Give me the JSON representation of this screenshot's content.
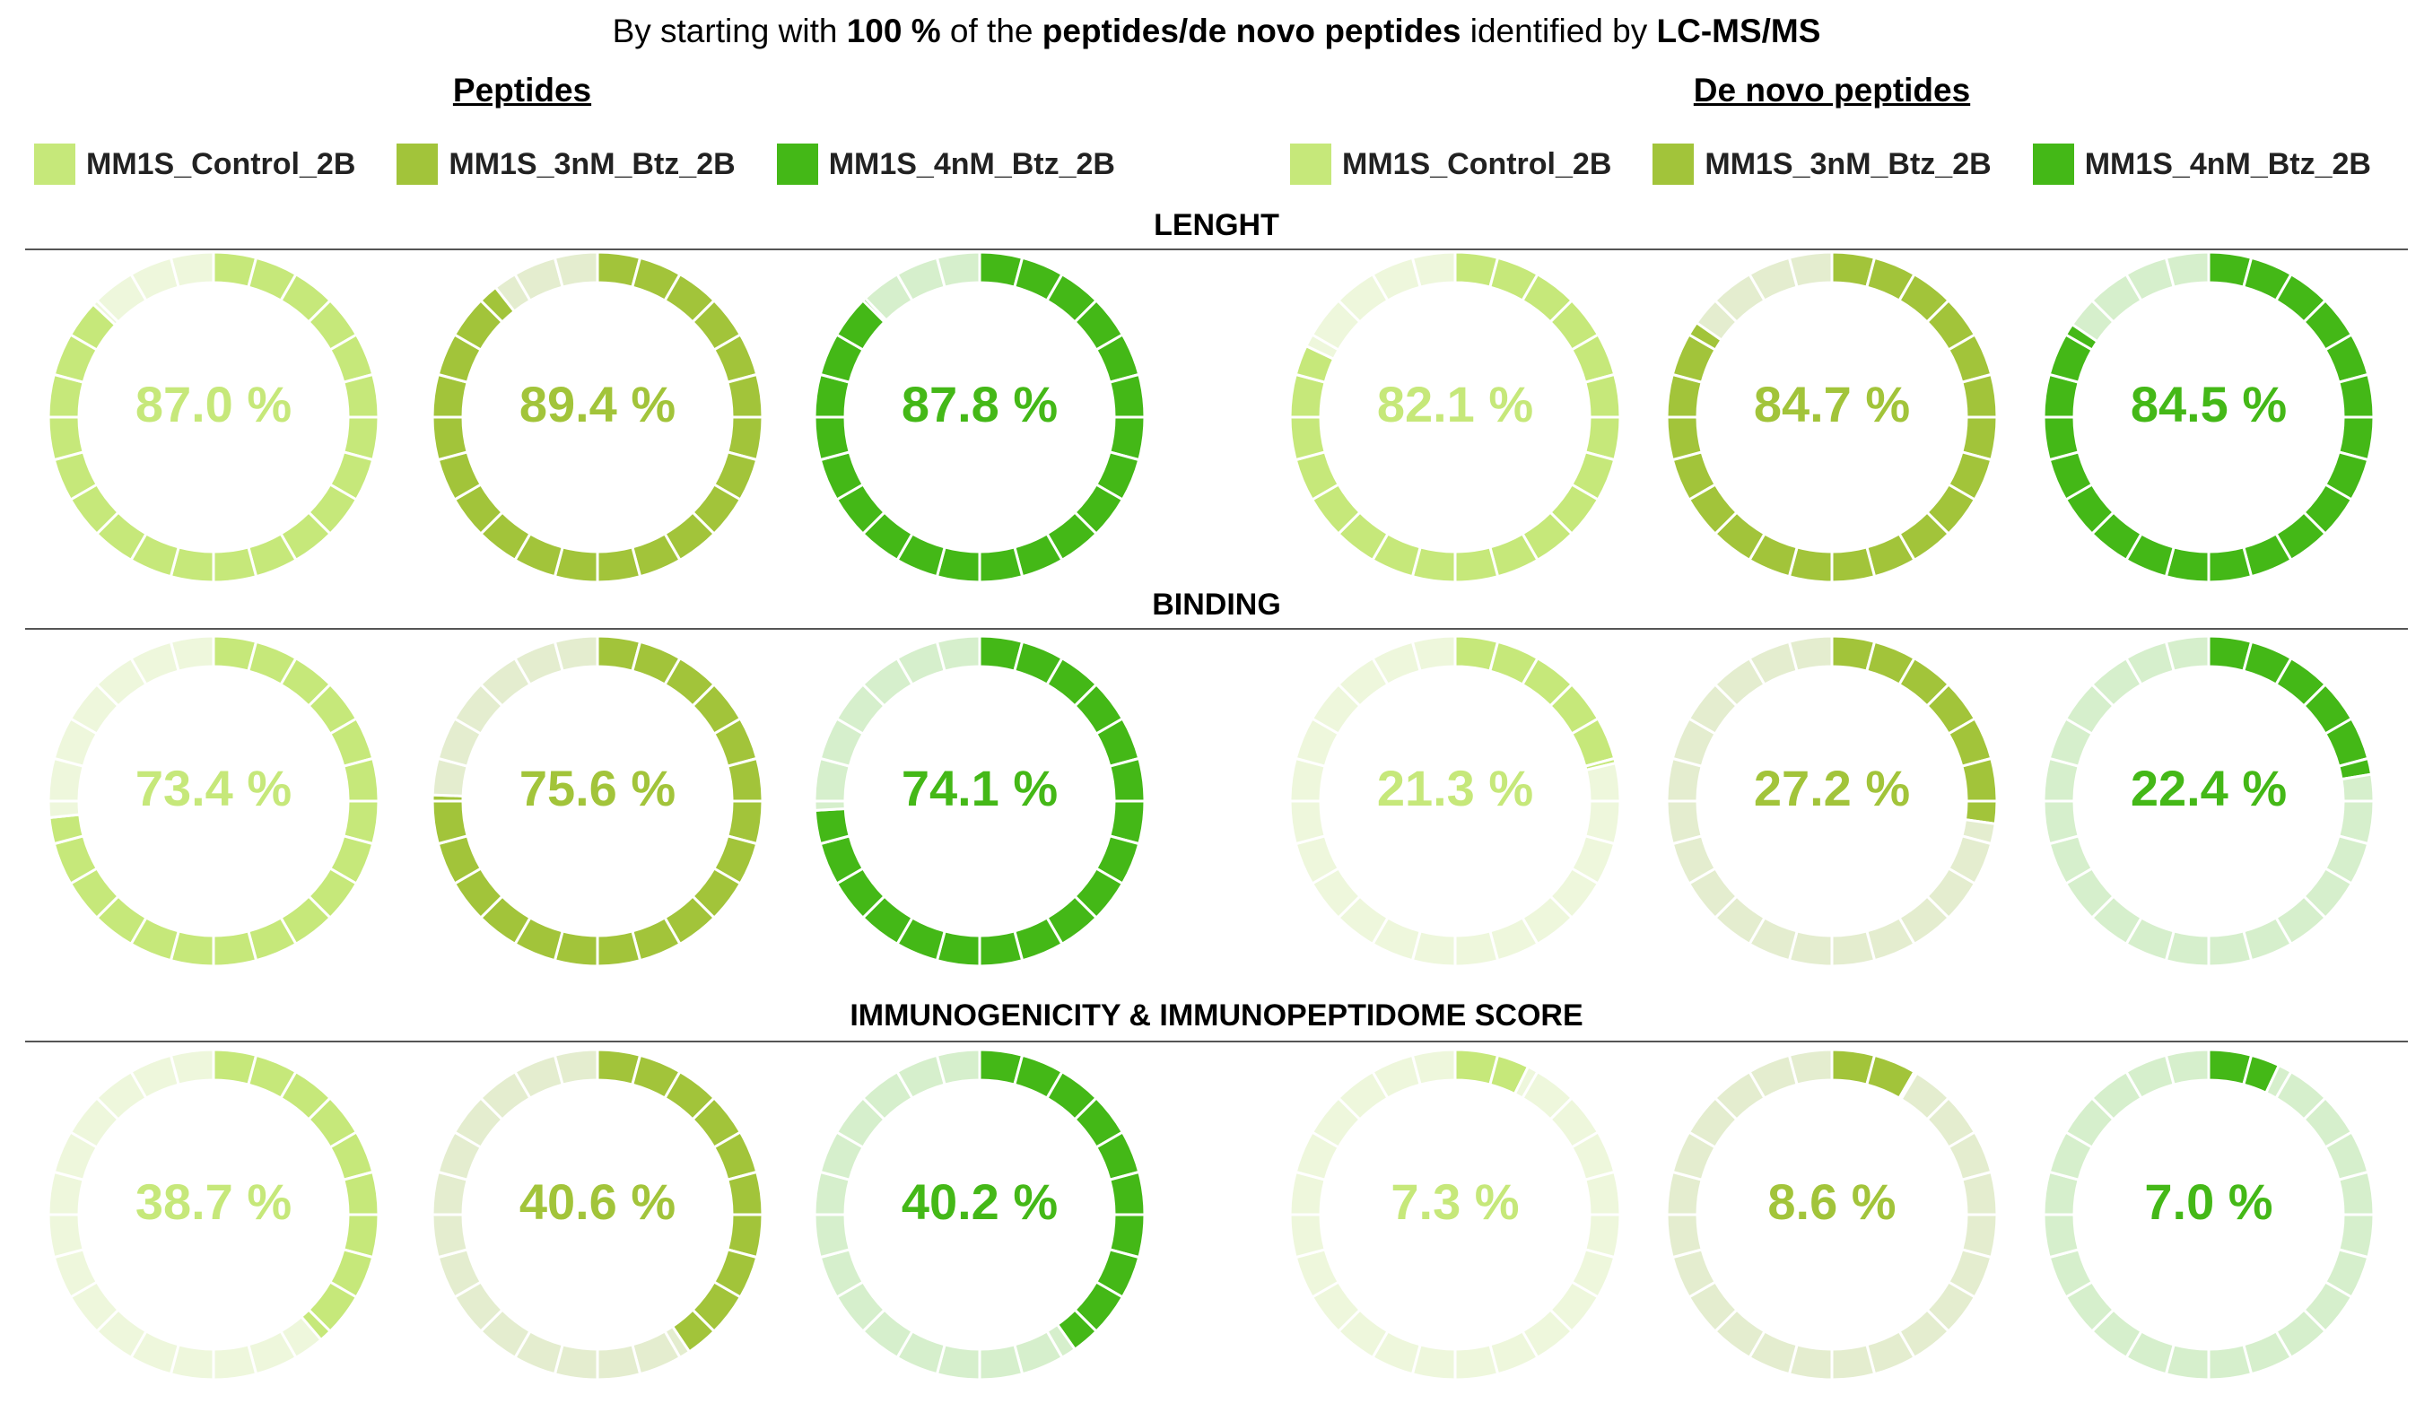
{
  "title": {
    "pre1": "By starting with ",
    "bold1": "100 %",
    "pre2": " of the ",
    "bold2": "peptides/de novo peptides",
    "pre3": " identified by ",
    "bold3": "LC-MS/MS"
  },
  "groups": [
    "Peptides",
    "De novo peptides"
  ],
  "legend": [
    {
      "label": "MM1S_Control_2B",
      "color": "#c6e87a"
    },
    {
      "label": "MM1S_3nM_Btz_2B",
      "color": "#a2c43a"
    },
    {
      "label": "MM1S_4nM_Btz_2B",
      "color": "#44b817"
    }
  ],
  "sections": [
    "LENGHT",
    "BINDING",
    "IMMUNOGENICITY & IMMUNOPEPTIDOME SCORE"
  ],
  "chart_data": {
    "type": "donut",
    "segments_per_ring": 24,
    "series_order": [
      "MM1S_Control_2B",
      "MM1S_3nM_Btz_2B",
      "MM1S_4nM_Btz_2B"
    ],
    "rows": [
      {
        "section": "LENGHT",
        "peptides": [
          87.0,
          89.4,
          87.8
        ],
        "de_novo_peptides": [
          82.1,
          84.7,
          84.5
        ]
      },
      {
        "section": "BINDING",
        "peptides": [
          73.4,
          75.6,
          74.1
        ],
        "de_novo_peptides": [
          21.3,
          27.2,
          22.4
        ]
      },
      {
        "section": "IMMUNOGENICITY & IMMUNOPEPTIDOME SCORE",
        "peptides": [
          38.7,
          40.6,
          40.2
        ],
        "de_novo_peptides": [
          7.3,
          8.6,
          7.0
        ]
      }
    ],
    "labels": [
      [
        "87.0 %",
        "89.4 %",
        "87.8 %",
        "82.1 %",
        "84.7 %",
        "84.5 %"
      ],
      [
        "73.4 %",
        "75.6 %",
        "74.1 %",
        "21.3 %",
        "27.2 %",
        "22.4 %"
      ],
      [
        "38.7 %",
        "40.6 %",
        "40.2 %",
        "7.3 %",
        "8.6 %",
        "7.0 %"
      ]
    ],
    "remainder_colors": [
      "#eef7dc",
      "#e4edcf",
      "#d6efcc"
    ]
  }
}
